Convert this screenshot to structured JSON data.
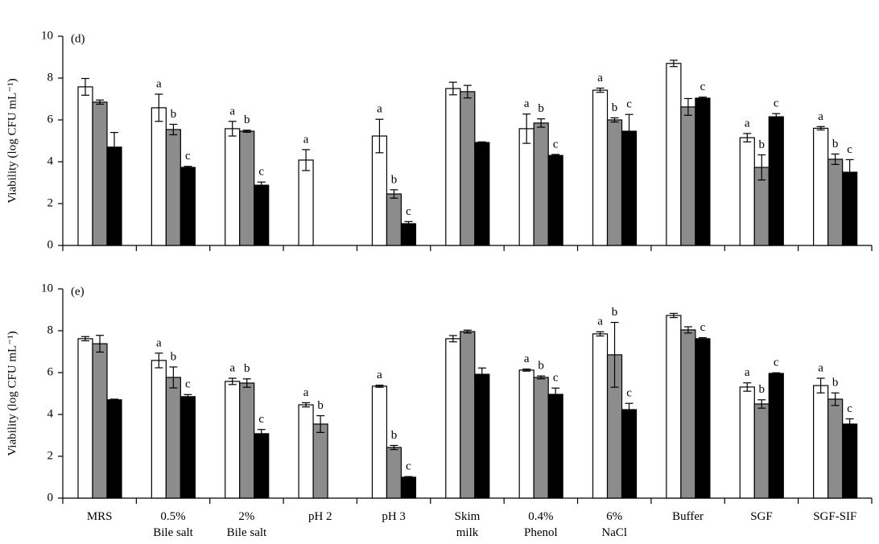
{
  "chart_data": [
    {
      "type": "bar",
      "panel_label": "(d)",
      "y_label": "Viability (log CFU mL⁻¹)",
      "ylim": [
        0,
        10
      ],
      "yticks": [
        0,
        2,
        4,
        6,
        8,
        10
      ],
      "series": [
        {
          "color": "#ffffff",
          "values": [
            7.58,
            6.58,
            5.58,
            4.08,
            5.23,
            7.5,
            5.58,
            7.42,
            8.7,
            5.15,
            5.6
          ],
          "errors": [
            0.4,
            0.65,
            0.35,
            0.5,
            0.8,
            0.3,
            0.7,
            0.1,
            0.15,
            0.2,
            0.08
          ],
          "letters": [
            null,
            "a",
            "a",
            "a",
            "a",
            null,
            "a",
            "a",
            null,
            "a",
            "a"
          ]
        },
        {
          "color": "#8c8c8c",
          "values": [
            6.85,
            5.54,
            5.46,
            null,
            2.46,
            7.35,
            5.85,
            6.0,
            6.62,
            3.73,
            4.12
          ],
          "errors": [
            0.1,
            0.25,
            0.05,
            null,
            0.2,
            0.3,
            0.2,
            0.1,
            0.4,
            0.6,
            0.25
          ],
          "letters": [
            null,
            "b",
            "b",
            null,
            "b",
            null,
            "b",
            "b",
            null,
            "b",
            "b"
          ]
        },
        {
          "color": "#000000",
          "values": [
            4.7,
            3.73,
            2.88,
            null,
            1.04,
            4.92,
            4.3,
            5.46,
            7.04,
            6.15,
            3.5
          ],
          "errors": [
            0.7,
            0.05,
            0.15,
            null,
            0.1,
            0.03,
            0.05,
            0.8,
            0.05,
            0.15,
            0.6
          ],
          "letters": [
            null,
            "c",
            "c",
            null,
            "c",
            null,
            "c",
            "c",
            "c",
            "c",
            "c"
          ]
        }
      ]
    },
    {
      "type": "bar",
      "panel_label": "(e)",
      "y_label": "Viability (log CFU mL⁻¹)",
      "categories": [
        "MRS",
        "0.5%\nBile salt",
        "2%\nBile salt",
        "pH 2",
        "pH 3",
        "Skim\nmilk",
        "0.4%\nPhenol",
        "6%\nNaCl",
        "Buffer",
        "SGF",
        "SGF-SIF"
      ],
      "ylim": [
        0,
        10
      ],
      "yticks": [
        0,
        2,
        4,
        6,
        8,
        10
      ],
      "series": [
        {
          "color": "#ffffff",
          "values": [
            7.62,
            6.58,
            5.58,
            4.46,
            5.35,
            7.62,
            6.12,
            7.85,
            8.73,
            5.31,
            5.38
          ],
          "errors": [
            0.1,
            0.35,
            0.15,
            0.1,
            0.05,
            0.15,
            0.05,
            0.1,
            0.1,
            0.2,
            0.35
          ],
          "letters": [
            null,
            "a",
            "a",
            "a",
            "a",
            null,
            "a",
            "a",
            null,
            "a",
            "a"
          ]
        },
        {
          "color": "#8c8c8c",
          "values": [
            7.38,
            5.77,
            5.5,
            3.54,
            2.42,
            7.96,
            5.77,
            6.85,
            8.04,
            4.5,
            4.73
          ],
          "errors": [
            0.4,
            0.5,
            0.2,
            0.4,
            0.1,
            0.07,
            0.07,
            1.55,
            0.15,
            0.2,
            0.3
          ],
          "letters": [
            null,
            "b",
            "b",
            "b",
            "b",
            null,
            "b",
            "b",
            null,
            "b",
            "b"
          ]
        },
        {
          "color": "#000000",
          "values": [
            4.7,
            4.85,
            3.08,
            null,
            1.0,
            5.92,
            4.96,
            4.23,
            7.62,
            5.96,
            3.54
          ],
          "errors": [
            0.03,
            0.1,
            0.2,
            null,
            0.03,
            0.3,
            0.3,
            0.3,
            0.05,
            0.03,
            0.25
          ],
          "letters": [
            null,
            "c",
            "c",
            null,
            "c",
            null,
            "c",
            "c",
            "c",
            "c",
            "c"
          ]
        }
      ]
    }
  ]
}
